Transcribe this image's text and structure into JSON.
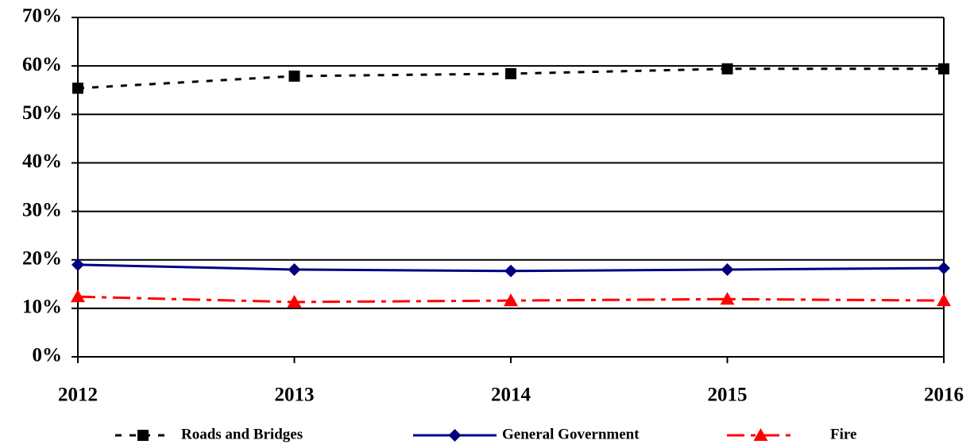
{
  "chart_data": {
    "type": "line",
    "categories": [
      "2012",
      "2013",
      "2014",
      "2015",
      "2016"
    ],
    "series": [
      {
        "name": "Roads and Bridges",
        "color": "#000000",
        "line_style": "dashed",
        "marker": "square",
        "values": [
          55.4,
          57.9,
          58.4,
          59.4,
          59.4
        ]
      },
      {
        "name": "General Government",
        "color": "#000080",
        "line_style": "solid",
        "marker": "diamond",
        "values": [
          19.0,
          18.0,
          17.7,
          18.0,
          18.3
        ]
      },
      {
        "name": "Fire",
        "color": "#ff0000",
        "line_style": "dash-dot",
        "marker": "triangle",
        "values": [
          12.4,
          11.3,
          11.6,
          11.9,
          11.6
        ]
      }
    ],
    "ylim": [
      0,
      70
    ],
    "yticks": [
      {
        "value": 0,
        "label": "0%"
      },
      {
        "value": 10,
        "label": "10%"
      },
      {
        "value": 20,
        "label": "20%"
      },
      {
        "value": 30,
        "label": "30%"
      },
      {
        "value": 40,
        "label": "40%"
      },
      {
        "value": 50,
        "label": "50%"
      },
      {
        "value": 60,
        "label": "60%"
      },
      {
        "value": 70,
        "label": "70%"
      }
    ],
    "grid": true,
    "legend": "bottom"
  }
}
